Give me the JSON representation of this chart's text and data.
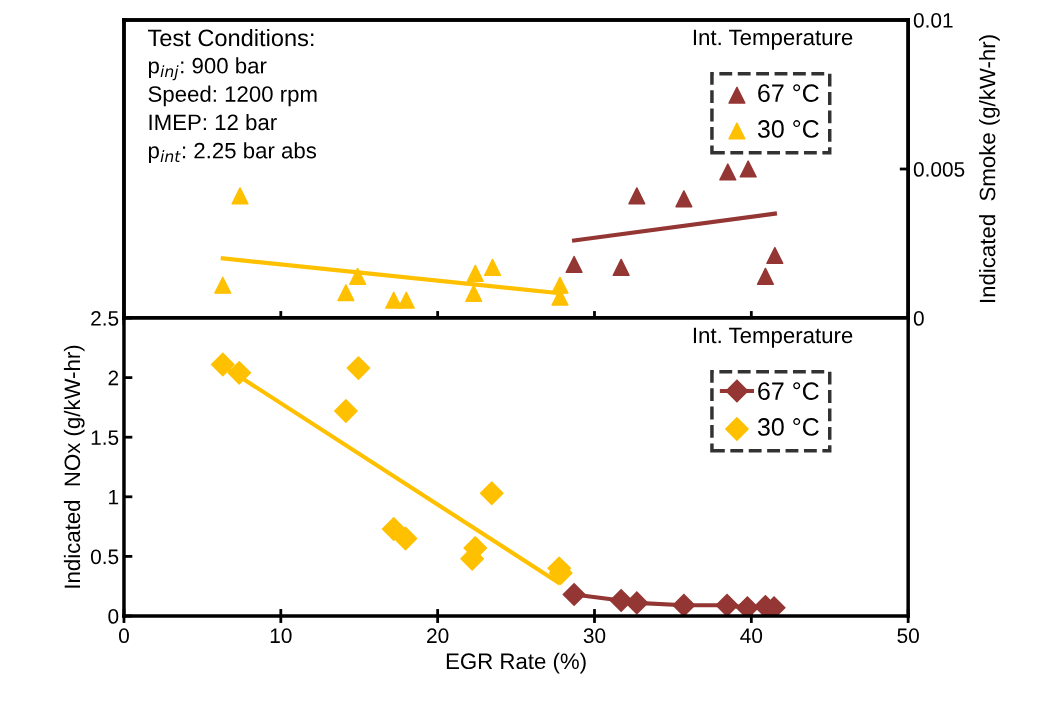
{
  "chart_data": [
    {
      "type": "scatter",
      "xlim": [
        0,
        50
      ],
      "xticks": [
        {
          "value": 0,
          "label": null
        },
        {
          "value": 10,
          "label": null
        },
        {
          "value": 20,
          "label": null
        },
        {
          "value": 30,
          "label": null
        },
        {
          "value": 40,
          "label": null
        },
        {
          "value": 50,
          "label": null
        }
      ],
      "y2lim": [
        0,
        0.01
      ],
      "y2ticks": [
        0,
        0.005,
        0.01
      ],
      "y2label": "Indicated  Smoke (g/kW-hr)",
      "legend": "top right",
      "legend_title": "Int. Temperature",
      "grid": false,
      "tick_labels": "y",
      "annotations": [
        "Test Conditions:",
        "p$_{inj}$: 900 bar",
        "Speed: 1200 rpm",
        "IMEP: 12 bar",
        "p$_{int}$: 2.25 bar abs"
      ],
      "series": [
        {
          "name": "67 °C",
          "color": "#943634",
          "axis": "y2",
          "marker": "triangle",
          "x": [
            28.7,
            31.7,
            32.7,
            35.7,
            38.5,
            39.8,
            40.9,
            41.5
          ],
          "values": [
            0.0018,
            0.0017,
            0.0041,
            0.004,
            0.0049,
            0.005,
            0.0014,
            0.0021
          ]
        },
        {
          "name": "30 °C",
          "color": "#ffc000",
          "axis": "y2",
          "marker": "triangle",
          "x": [
            6.3,
            7.4,
            14.15,
            14.9,
            17.2,
            18.0,
            22.3,
            22.4,
            23.5,
            27.8,
            27.8
          ],
          "values": [
            0.0011,
            0.0041,
            0.00085,
            0.0014,
            0.0006,
            0.0006,
            0.00083,
            0.0015,
            0.0017,
            0.0011,
            0.0007
          ]
        },
        {
          "type": "line",
          "color": "#943634",
          "axis": "y2",
          "marker": "none",
          "x": [
            28.7,
            41.5
          ],
          "values": [
            0.0026,
            0.0035
          ]
        },
        {
          "type": "line",
          "color": "#ffc000",
          "axis": "y2",
          "marker": "none",
          "x": [
            6.3,
            27.8
          ],
          "values": [
            0.002,
            0.00083
          ]
        }
      ]
    },
    {
      "type": "scatter",
      "xlim": [
        0,
        50
      ],
      "xticks": [
        0,
        10,
        20,
        30,
        40,
        50
      ],
      "xlabel": "EGR Rate (%)",
      "ylim": [
        0,
        2.5
      ],
      "yticks": [
        0,
        0.5,
        1,
        1.5,
        2,
        2.5
      ],
      "ylabel": "Indicated  NOx (g/kW-hr)",
      "legend": "top right",
      "legend_title": "Int. Temperature",
      "grid": false,
      "series": [
        {
          "name": "67 °C",
          "type": "line",
          "color": "#943634",
          "marker": "diamond",
          "x": [
            28.7,
            31.7,
            32.7,
            35.7,
            38.45,
            39.75,
            40.9,
            41.45
          ],
          "values": [
            0.18,
            0.13,
            0.11,
            0.09,
            0.09,
            0.07,
            0.08,
            0.07
          ]
        },
        {
          "name": "30 °C",
          "color": "#ffc000",
          "marker": "diamond",
          "x": [
            6.3,
            7.35,
            14.95,
            14.15,
            17.2,
            17.95,
            23.45,
            22.4,
            22.2,
            27.75,
            27.85
          ],
          "values": [
            2.11,
            2.04,
            2.08,
            1.72,
            0.73,
            0.65,
            1.03,
            0.57,
            0.48,
            0.4,
            0.36
          ]
        },
        {
          "type": "line",
          "color": "#ffc000",
          "marker": "none",
          "x": [
            6.3,
            27.7
          ],
          "values": [
            2.1,
            0.28
          ]
        }
      ]
    }
  ]
}
